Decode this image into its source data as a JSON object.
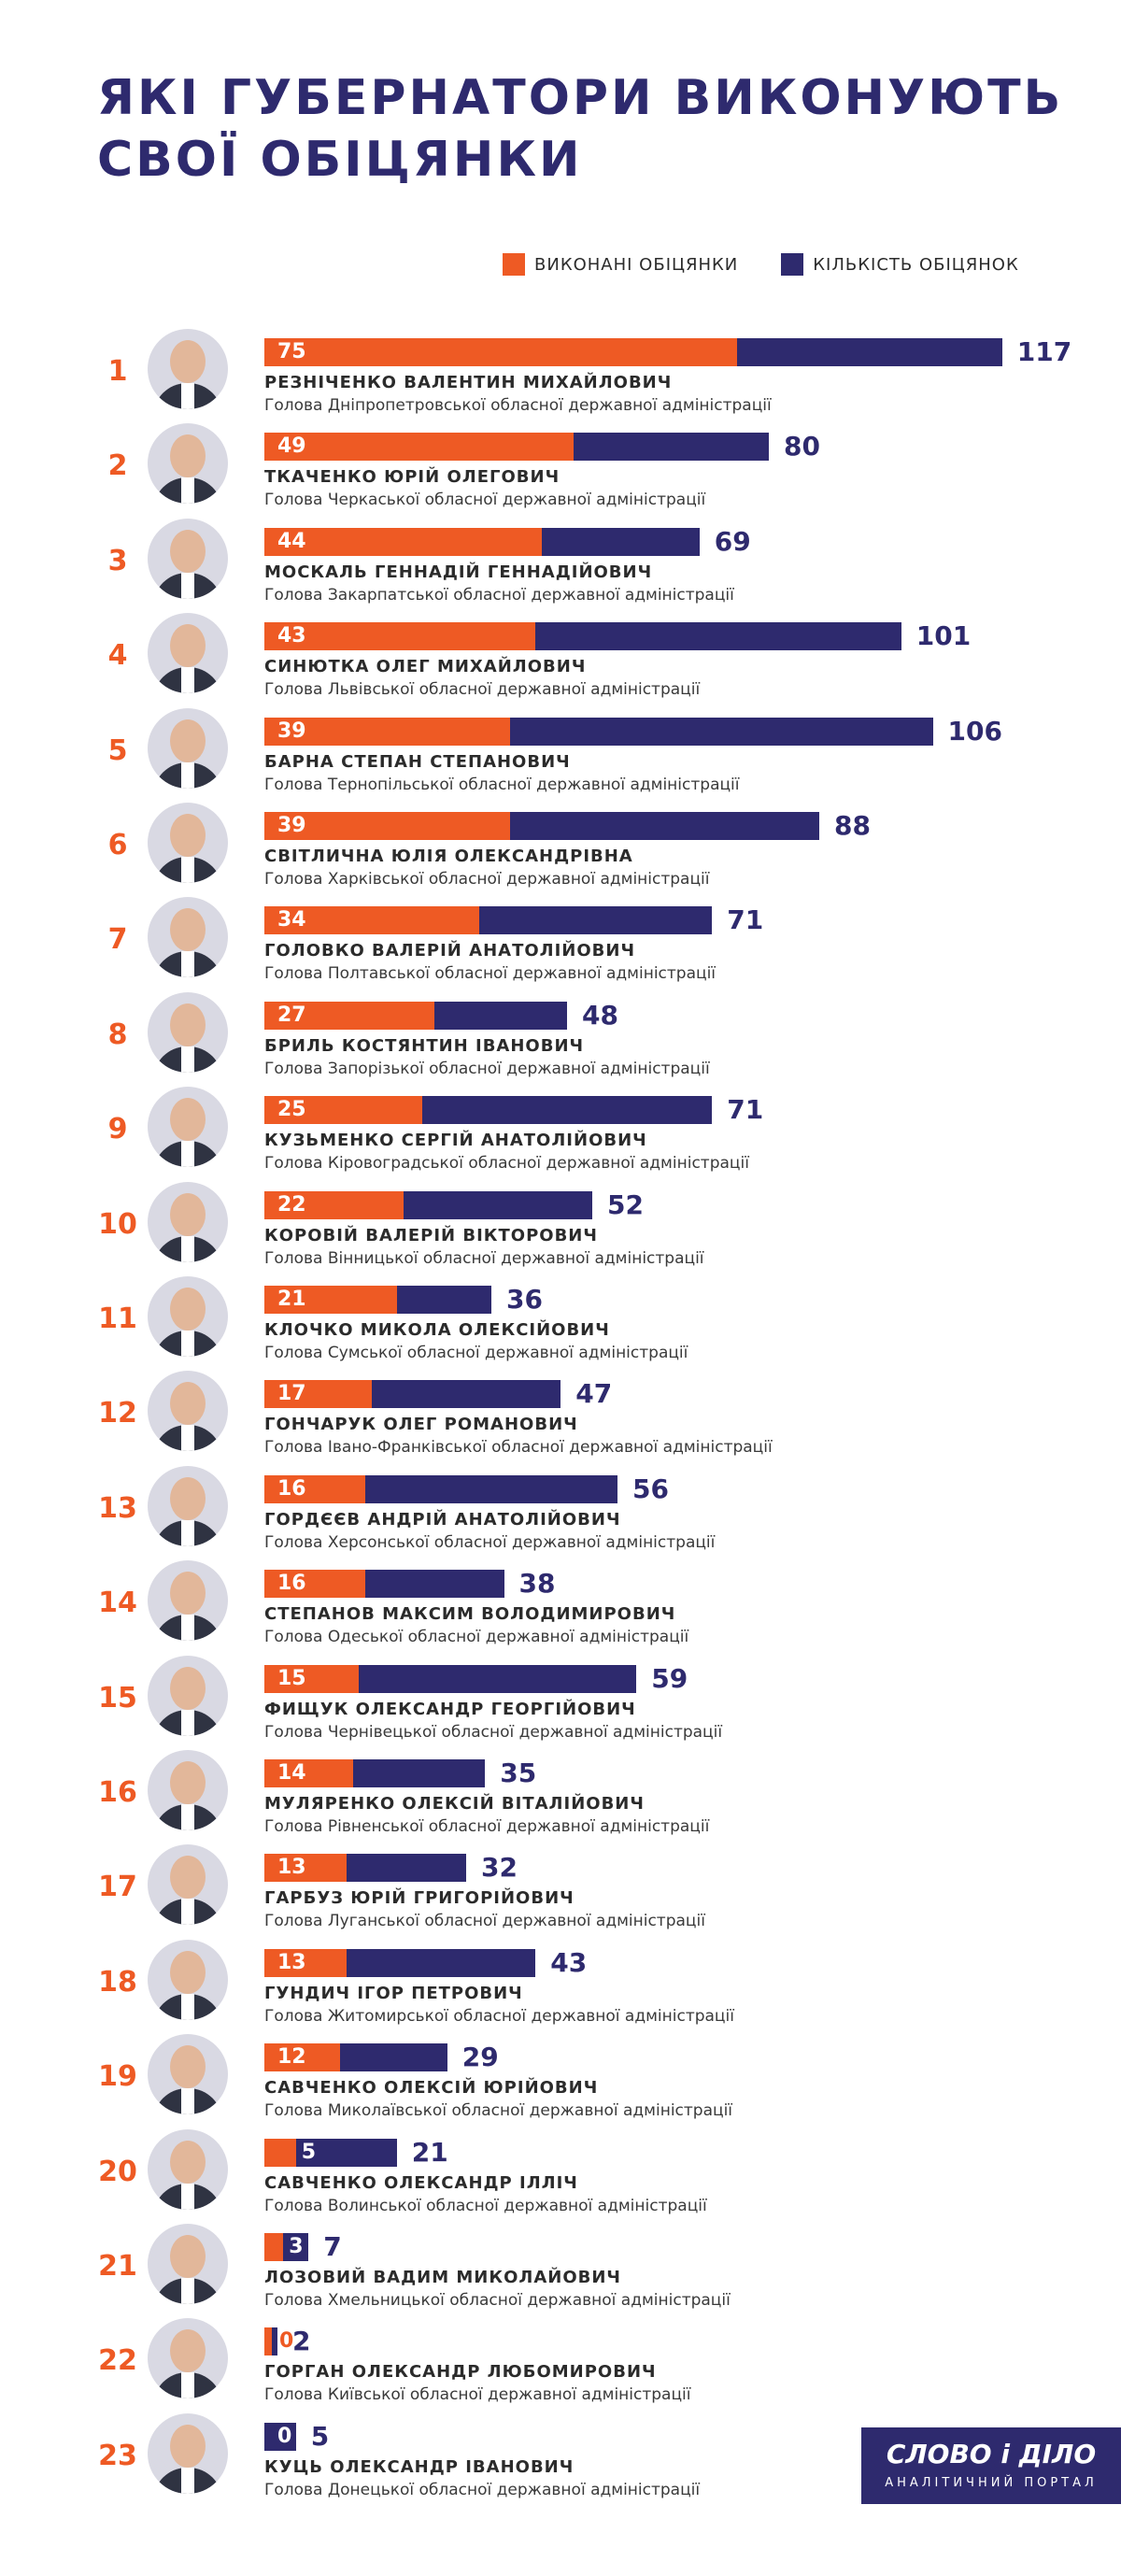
{
  "title": "Які губернатори виконують свої обіцянки",
  "legend": {
    "done": "Виконані обіцянки",
    "total": "Кількість обіцянок"
  },
  "logo": {
    "brand": "СЛОВО і ДІЛО",
    "tagline": "АНАЛІТИЧНИЙ ПОРТАЛ"
  },
  "colors": {
    "done": "#ee5a24",
    "total": "#2e2a6e",
    "title": "#2e2a6e"
  },
  "chart_data": {
    "type": "bar",
    "orientation": "horizontal",
    "series": [
      {
        "name": "Виконані обіцянки",
        "values": [
          75,
          49,
          44,
          43,
          39,
          39,
          34,
          27,
          25,
          22,
          21,
          17,
          16,
          16,
          15,
          14,
          13,
          13,
          12,
          5,
          3,
          0,
          0
        ]
      },
      {
        "name": "Кількість обіцянок",
        "values": [
          117,
          80,
          69,
          101,
          106,
          88,
          71,
          48,
          71,
          52,
          36,
          47,
          56,
          38,
          59,
          35,
          32,
          43,
          29,
          21,
          7,
          2,
          5
        ]
      }
    ],
    "rows": [
      {
        "rank": "1",
        "name": "Резніченко Валентин Михайлович",
        "position": "Голова Дніпропетровської обласної державної адміністрації",
        "done": 75,
        "total": 117
      },
      {
        "rank": "2",
        "name": "Ткаченко Юрій Олегович",
        "position": "Голова Черкаської обласної державної адміністрації",
        "done": 49,
        "total": 80
      },
      {
        "rank": "3",
        "name": "Москаль Геннадій Геннадійович",
        "position": "Голова Закарпатської обласної державної адміністрації",
        "done": 44,
        "total": 69
      },
      {
        "rank": "4",
        "name": "Синютка Олег Михайлович",
        "position": "Голова Львівської обласної державної адміністрації",
        "done": 43,
        "total": 101
      },
      {
        "rank": "5",
        "name": "Барна Степан Степанович",
        "position": "Голова Тернопільської обласної державної адміністрації",
        "done": 39,
        "total": 106
      },
      {
        "rank": "6",
        "name": "Світлична Юлія Олександрівна",
        "position": "Голова Харківської обласної державної адміністрації",
        "done": 39,
        "total": 88
      },
      {
        "rank": "7",
        "name": "Головко Валерій Анатолійович",
        "position": "Голова Полтавської обласної державної адміністрації",
        "done": 34,
        "total": 71
      },
      {
        "rank": "8",
        "name": "Бриль Костянтин Іванович",
        "position": "Голова Запорізької обласної державної адміністрації",
        "done": 27,
        "total": 48
      },
      {
        "rank": "9",
        "name": "Кузьменко Сергій Анатолійович",
        "position": "Голова Кіровоградської обласної державної адміністрації",
        "done": 25,
        "total": 71
      },
      {
        "rank": "10",
        "name": "Коровій Валерій Вікторович",
        "position": "Голова Вінницької обласної державної адміністрації",
        "done": 22,
        "total": 52
      },
      {
        "rank": "11",
        "name": "Клочко Микола Олексійович",
        "position": "Голова Сумської обласної державної адміністрації",
        "done": 21,
        "total": 36
      },
      {
        "rank": "12",
        "name": "Гончарук Олег Романович",
        "position": "Голова Івано-Франківської обласної державної адміністрації",
        "done": 17,
        "total": 47
      },
      {
        "rank": "13",
        "name": "Гордєєв Андрій Анатолійович",
        "position": "Голова Херсонської обласної державної адміністрації",
        "done": 16,
        "total": 56
      },
      {
        "rank": "14",
        "name": "Степанов Максим Володимирович",
        "position": "Голова Одеської обласної державної адміністрації",
        "done": 16,
        "total": 38
      },
      {
        "rank": "15",
        "name": "Фищук Олександр Георгійович",
        "position": "Голова Чернівецької обласної державної адміністрації",
        "done": 15,
        "total": 59
      },
      {
        "rank": "16",
        "name": "Муляренко Олексій Віталійович",
        "position": "Голова Рівненської обласної державної адміністрації",
        "done": 14,
        "total": 35
      },
      {
        "rank": "17",
        "name": "Гарбуз Юрій Григорійович",
        "position": "Голова Луганської обласної державної адміністрації",
        "done": 13,
        "total": 32
      },
      {
        "rank": "18",
        "name": "Гундич Ігор Петрович",
        "position": "Голова Житомирської обласної державної адміністрації",
        "done": 13,
        "total": 43
      },
      {
        "rank": "19",
        "name": "Савченко Олексій Юрійович",
        "position": "Голова Миколаївської обласної державної адміністрації",
        "done": 12,
        "total": 29
      },
      {
        "rank": "20",
        "name": "Савченко Олександр Ілліч",
        "position": "Голова Волинської обласної державної адміністрації",
        "done": 5,
        "total": 21
      },
      {
        "rank": "21",
        "name": "Лозовий Вадим Миколайович",
        "position": "Голова Хмельницької обласної державної адміністрації",
        "done": 3,
        "total": 7
      },
      {
        "rank": "22",
        "name": "Горган Олександр Любомирович",
        "position": "Голова Київської обласної державної адміністрації",
        "done": 0,
        "total": 2
      },
      {
        "rank": "23",
        "name": "Куць Олександр Іванович",
        "position": "Голова Донецької обласної державної адміністрації",
        "done": 0,
        "total": 5
      }
    ]
  }
}
